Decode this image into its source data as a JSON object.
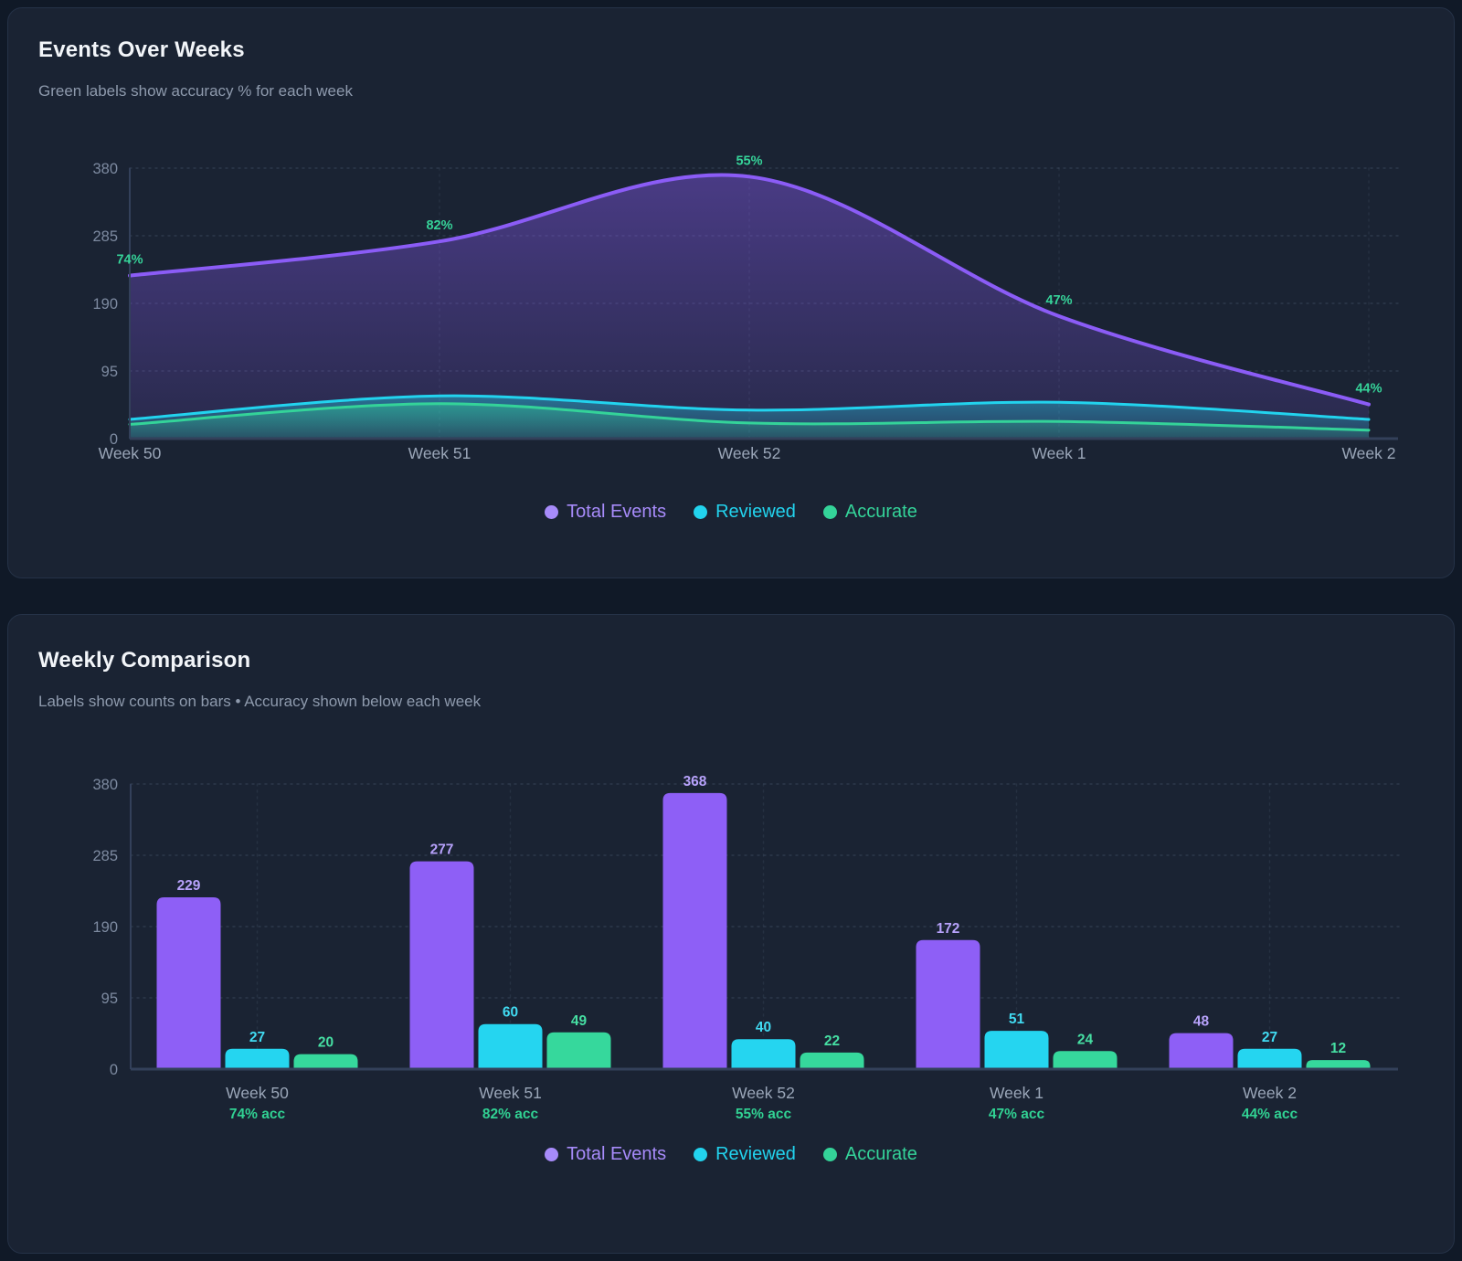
{
  "panels": [
    {
      "title": "Events Over Weeks",
      "subtitle": "Green labels show accuracy % for each week"
    },
    {
      "title": "Weekly Comparison",
      "subtitle": "Labels show counts on bars • Accuracy shown below each week"
    }
  ],
  "legend": [
    {
      "label": "Total Events",
      "color": "#a78bfa"
    },
    {
      "label": "Reviewed",
      "color": "#22d3ee"
    },
    {
      "label": "Accurate",
      "color": "#34d399"
    }
  ],
  "chart_data": [
    {
      "type": "area",
      "title": "Events Over Weeks",
      "categories": [
        "Week 50",
        "Week 51",
        "Week 52",
        "Week 1",
        "Week 2"
      ],
      "series": [
        {
          "name": "Total Events",
          "color": "#8b5cf6",
          "label_color": "#b7a2fb",
          "values": [
            229,
            277,
            368,
            172,
            48
          ]
        },
        {
          "name": "Reviewed",
          "color": "#22d3ee",
          "label_color": "#41dbf2",
          "values": [
            27,
            60,
            40,
            51,
            27
          ]
        },
        {
          "name": "Accurate",
          "color": "#34d399",
          "label_color": "#46dfa3",
          "values": [
            20,
            49,
            22,
            24,
            12
          ]
        }
      ],
      "accuracy_labels": [
        "74%",
        "82%",
        "55%",
        "47%",
        "44%"
      ],
      "yticks": [
        0,
        95,
        190,
        285,
        380
      ],
      "ylim": [
        0,
        380
      ],
      "grid": true,
      "legend_position": "bottom"
    },
    {
      "type": "bar",
      "title": "Weekly Comparison",
      "categories": [
        "Week 50",
        "Week 51",
        "Week 52",
        "Week 1",
        "Week 2"
      ],
      "series": [
        {
          "name": "Total Events",
          "color": "#8e5ff6",
          "label_color": "#b7a2fb",
          "values": [
            229,
            277,
            368,
            172,
            48
          ]
        },
        {
          "name": "Reviewed",
          "color": "#25d5f0",
          "label_color": "#41dbf2",
          "values": [
            27,
            60,
            40,
            51,
            27
          ]
        },
        {
          "name": "Accurate",
          "color": "#36d89c",
          "label_color": "#46dfa3",
          "values": [
            20,
            49,
            22,
            24,
            12
          ]
        }
      ],
      "accuracy_labels": [
        "74% acc",
        "82% acc",
        "55% acc",
        "47% acc",
        "44% acc"
      ],
      "yticks": [
        0,
        95,
        190,
        285,
        380
      ],
      "ylim": [
        0,
        380
      ],
      "grid": true,
      "legend_position": "bottom"
    }
  ],
  "colors": {
    "page_bg": "#101927",
    "panel_bg": "#1a2333",
    "panel_border": "#253247",
    "axis": "#33405a",
    "grid": "#7f93ad",
    "title": "#f2f5f9",
    "subtitle": "#8e9aad",
    "tick_label": "#7d8aa0",
    "x_label": "#9aa6b8",
    "accuracy_green": "#34d399"
  }
}
